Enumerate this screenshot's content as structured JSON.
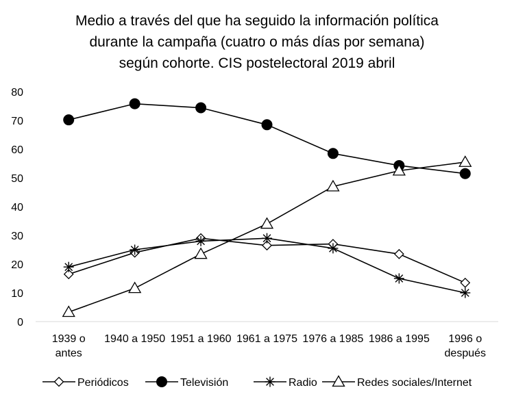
{
  "chart_data": {
    "type": "line",
    "title": [
      "Medio a través del que ha seguido la información política",
      "durante la campaña (cuatro o más días por semana)",
      "según cohorte. CIS postelectoral 2019 abril"
    ],
    "categories": [
      [
        "1939 o",
        "antes"
      ],
      [
        "1940 a 1950"
      ],
      [
        "1951 a 1960"
      ],
      [
        "1961 a 1975"
      ],
      [
        "1976 a 1985"
      ],
      [
        "1986 a 1995"
      ],
      [
        "1996 o",
        "después"
      ]
    ],
    "ylim": [
      0,
      80
    ],
    "yticks": [
      "0",
      "10",
      "20",
      "30",
      "40",
      "50",
      "60",
      "70",
      "80"
    ],
    "grid": false,
    "legend_position": "bottom",
    "series": [
      {
        "name": "Periódicos",
        "marker": "diamond",
        "values": [
          16.5,
          24,
          29,
          26.5,
          27,
          23.5,
          13.5
        ]
      },
      {
        "name": "Televisión",
        "marker": "circle",
        "values": [
          70.2,
          75.8,
          74.4,
          68.5,
          58.5,
          54.3,
          51.5
        ]
      },
      {
        "name": "Radio",
        "marker": "star",
        "values": [
          19,
          25,
          28,
          29,
          25.5,
          15,
          10
        ]
      },
      {
        "name": "Redes sociales/Internet",
        "marker": "triangle",
        "values": [
          3.3,
          11.6,
          23.5,
          34,
          47,
          52.5,
          55.5
        ]
      }
    ]
  }
}
